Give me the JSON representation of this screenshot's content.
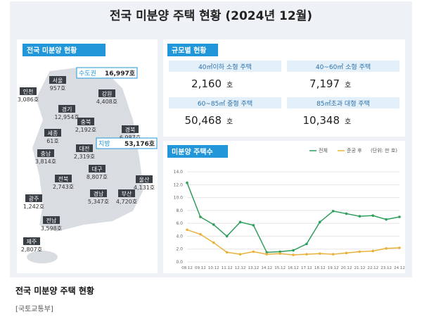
{
  "header": {
    "title": "전국 미분양 주택 현황 (2024년 12월)"
  },
  "map": {
    "title": "전국 미분양 현황",
    "capital": {
      "name": "수도권",
      "value": "16,997호"
    },
    "local": {
      "name": "지방",
      "value": "53,176호"
    },
    "regions": [
      {
        "name": "인천",
        "value": "3,086호"
      },
      {
        "name": "서울",
        "value": "957호"
      },
      {
        "name": "경기",
        "value": "12,954호"
      },
      {
        "name": "강원",
        "value": "4,408호"
      },
      {
        "name": "충북",
        "value": "2,192호"
      },
      {
        "name": "경북",
        "value": "6,987호"
      },
      {
        "name": "세종",
        "value": "61호"
      },
      {
        "name": "대전",
        "value": "2,319호"
      },
      {
        "name": "충남",
        "value": "3,814호"
      },
      {
        "name": "전북",
        "value": "2,743호"
      },
      {
        "name": "대구",
        "value": "8,807호"
      },
      {
        "name": "울산",
        "value": "4,131호"
      },
      {
        "name": "경남",
        "value": "5,347호"
      },
      {
        "name": "부산",
        "value": "4,720호"
      },
      {
        "name": "광주",
        "value": "1,242호"
      },
      {
        "name": "전남",
        "value": "3,598호"
      },
      {
        "name": "제주",
        "value": "2,807호"
      }
    ]
  },
  "size_table": {
    "title": "규모별 현황",
    "cells": [
      {
        "label": "40㎡이하 소형 주택",
        "value": "2,160",
        "unit": "호"
      },
      {
        "label": "40~60㎡ 소형 주택",
        "value": "7,197",
        "unit": "호"
      },
      {
        "label": "60~85㎡ 중형 주택",
        "value": "50,468",
        "unit": "호"
      },
      {
        "label": "85㎡초과 대형 주택",
        "value": "10,348",
        "unit": "호"
      }
    ]
  },
  "chart_data": {
    "type": "line",
    "title": "미분양 주택수",
    "unit_note": "(단위: 만 호)",
    "x": [
      "08.12",
      "09.12",
      "10.12",
      "11.12",
      "12.12",
      "13.12",
      "14.12",
      "15.12",
      "16.12",
      "17.12",
      "18.12",
      "19.12",
      "20.12",
      "21.12",
      "22.12",
      "23.12",
      "24.12"
    ],
    "series": [
      {
        "name": "전체",
        "color": "#2e9e5b",
        "values": [
          12.3,
          7.0,
          5.8,
          4.0,
          6.2,
          5.7,
          1.5,
          1.6,
          1.8,
          2.8,
          6.2,
          7.9,
          7.5,
          7.1,
          7.2,
          6.6,
          7.0
        ]
      },
      {
        "name": "준공 후",
        "color": "#e8b23a",
        "values": [
          5.0,
          4.3,
          3.0,
          1.5,
          1.2,
          1.6,
          1.2,
          1.3,
          1.1,
          1.2,
          1.3,
          1.2,
          1.4,
          1.6,
          1.7,
          2.1,
          2.2
        ]
      }
    ],
    "ylim": [
      0,
      14
    ],
    "yticks": [
      {
        "value": 0,
        "label": "0.0"
      },
      {
        "value": 2,
        "label": "2.0"
      },
      {
        "value": 4,
        "label": "4.0"
      },
      {
        "value": 6,
        "label": "6.0"
      },
      {
        "value": 8,
        "label": "8.0"
      },
      {
        "value": 10,
        "label": "10.0"
      },
      {
        "value": 12,
        "label": "12.0"
      },
      {
        "value": 14,
        "label": "14.0"
      }
    ],
    "grid": true
  },
  "caption": {
    "title": "전국 미분양 주택 현황",
    "source": "[국토교통부]"
  }
}
